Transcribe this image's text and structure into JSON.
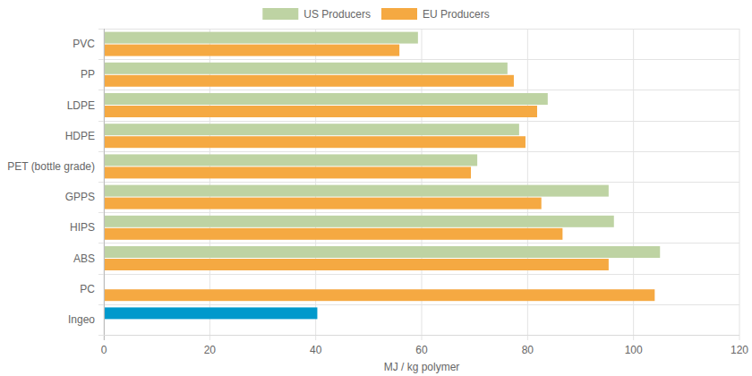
{
  "chart_data": {
    "type": "bar",
    "orientation": "horizontal",
    "grid": true,
    "legend": "top",
    "x_label": "MJ / kg polymer",
    "categories": [
      "PVC",
      "PP",
      "LDPE",
      "HDPE",
      "PET (bottle grade)",
      "GPPS",
      "HIPS",
      "ABS",
      "PC",
      "Ingeo"
    ],
    "series": [
      {
        "name": "US Producers",
        "color": "#bed3a3",
        "colors": [
          "#bed3a3",
          "#bed3a3",
          "#bed3a3",
          "#bed3a3",
          "#bed3a3",
          "#bed3a3",
          "#bed3a3",
          "#bed3a3",
          "#bed3a3",
          "#0099cc"
        ],
        "values": [
          59.3,
          76.2,
          83.8,
          78.4,
          70.5,
          95.3,
          96.3,
          105,
          0,
          40.3
        ]
      },
      {
        "name": "EU Producers",
        "color": "#f5a942",
        "values": [
          55.8,
          77.4,
          81.8,
          79.6,
          69.3,
          82.6,
          86.6,
          95.3,
          104,
          0
        ]
      }
    ],
    "xlim": [
      0,
      120
    ],
    "xticks": [
      0,
      20,
      40,
      60,
      80,
      100,
      120
    ]
  }
}
